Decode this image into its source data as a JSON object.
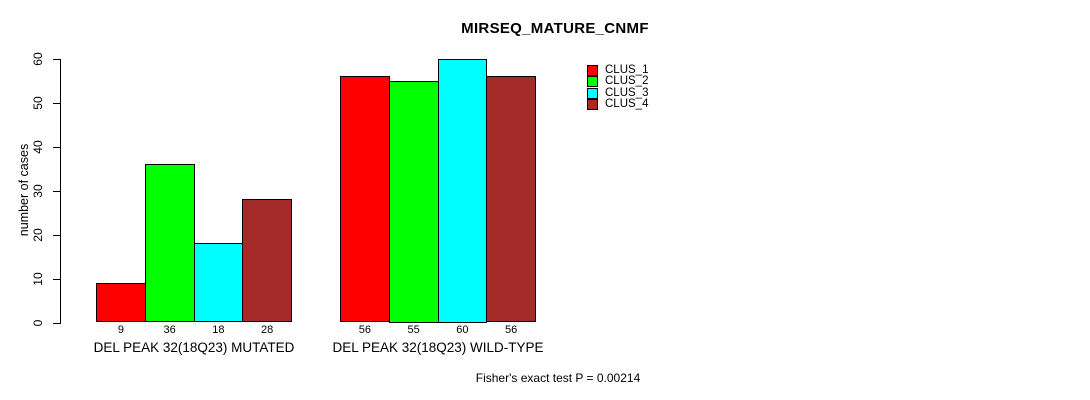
{
  "chart_data": {
    "type": "bar",
    "title": "MIRSEQ_MATURE_CNMF",
    "xlabel": "",
    "ylabel": "number of cases",
    "ylim": [
      0,
      60
    ],
    "yticks": [
      0,
      10,
      20,
      30,
      40,
      50,
      60
    ],
    "grid": false,
    "legend_position": "top-right",
    "bar_value_labels": true,
    "categories": [
      "DEL PEAK 32(18Q23) MUTATED",
      "DEL PEAK 32(18Q23) WILD-TYPE"
    ],
    "series": [
      {
        "name": "CLUS_1",
        "color": "#ff0000",
        "values": [
          9,
          56
        ]
      },
      {
        "name": "CLUS_2",
        "color": "#00ff00",
        "values": [
          36,
          55
        ]
      },
      {
        "name": "CLUS_3",
        "color": "#00ffff",
        "values": [
          18,
          60
        ]
      },
      {
        "name": "CLUS_4",
        "color": "#a52a2a",
        "values": [
          28,
          56
        ]
      }
    ],
    "annotation": "Fisher's exact test P = 0.00214"
  },
  "colors": {
    "background": "#ffffff",
    "axis": "#000000",
    "text": "#000000"
  }
}
